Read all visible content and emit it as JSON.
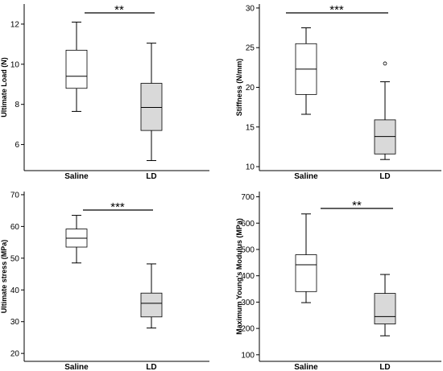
{
  "chart_data": [
    {
      "type": "box",
      "ylabel": "Ultimate Load (N)",
      "ylim": [
        4.7,
        13.0
      ],
      "yticks": [
        6,
        8,
        10,
        12
      ],
      "categories": [
        "Saline",
        "LD"
      ],
      "boxes": [
        {
          "category": "Saline",
          "whisker_low": 7.65,
          "q1": 8.8,
          "median": 9.4,
          "q3": 10.7,
          "whisker_high": 12.1,
          "outliers": [],
          "fill": "#ffffff"
        },
        {
          "category": "LD",
          "whisker_low": 5.2,
          "q1": 6.7,
          "median": 7.85,
          "q3": 9.05,
          "whisker_high": 11.05,
          "outliers": [],
          "fill": "#d9d9d9"
        }
      ],
      "significance": "**"
    },
    {
      "type": "box",
      "ylabel": "Stiffness (N/mm)",
      "ylim": [
        9.5,
        30.5
      ],
      "yticks": [
        10,
        15,
        20,
        25,
        30
      ],
      "categories": [
        "Saline",
        "LD"
      ],
      "boxes": [
        {
          "category": "Saline",
          "whisker_low": 16.6,
          "q1": 19.1,
          "median": 22.3,
          "q3": 25.5,
          "whisker_high": 27.5,
          "outliers": [],
          "fill": "#ffffff"
        },
        {
          "category": "LD",
          "whisker_low": 10.9,
          "q1": 11.6,
          "median": 13.8,
          "q3": 15.9,
          "whisker_high": 20.7,
          "outliers": [
            23.0
          ],
          "fill": "#d9d9d9"
        }
      ],
      "significance": "***"
    },
    {
      "type": "box",
      "ylabel": "Ultimate stress (MPa)",
      "ylim": [
        17.5,
        71.0
      ],
      "yticks": [
        20,
        30,
        40,
        50,
        60,
        70
      ],
      "categories": [
        "Saline",
        "LD"
      ],
      "boxes": [
        {
          "category": "Saline",
          "whisker_low": 48.5,
          "q1": 53.5,
          "median": 56.3,
          "q3": 59.2,
          "whisker_high": 63.5,
          "outliers": [],
          "fill": "#ffffff"
        },
        {
          "category": "LD",
          "whisker_low": 28.0,
          "q1": 31.5,
          "median": 35.8,
          "q3": 39.0,
          "whisker_high": 48.2,
          "outliers": [],
          "fill": "#d9d9d9"
        }
      ],
      "significance": "***"
    },
    {
      "type": "box",
      "ylabel": "Maximum Young's Modulus (MPa)",
      "ylim": [
        75,
        720
      ],
      "yticks": [
        100,
        200,
        300,
        400,
        500,
        600,
        700
      ],
      "categories": [
        "Saline",
        "LD"
      ],
      "boxes": [
        {
          "category": "Saline",
          "whisker_low": 298,
          "q1": 340,
          "median": 442,
          "q3": 480,
          "whisker_high": 635,
          "outliers": [],
          "fill": "#ffffff"
        },
        {
          "category": "LD",
          "whisker_low": 172,
          "q1": 217,
          "median": 245,
          "q3": 333,
          "whisker_high": 405,
          "outliers": [],
          "fill": "#d9d9d9"
        }
      ],
      "significance": "**"
    }
  ]
}
